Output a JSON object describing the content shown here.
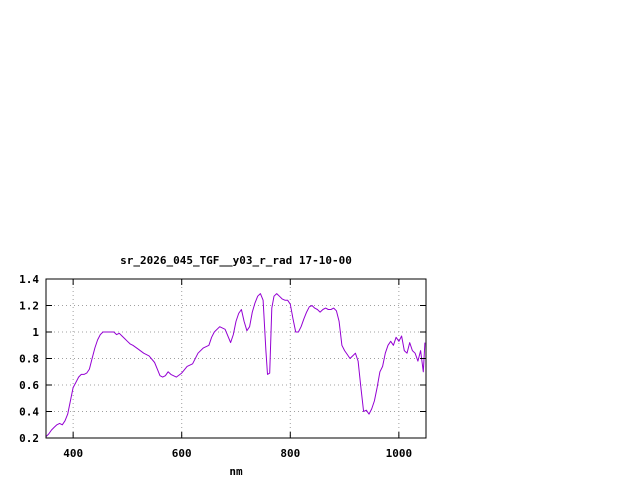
{
  "chart_data": {
    "type": "line",
    "title": "sr_2026_045_TGF__y03_r_rad 17-10-00",
    "xlabel": "nm",
    "ylabel": "",
    "xlim": [
      350,
      1050
    ],
    "ylim": [
      0.2,
      1.4
    ],
    "grid": true,
    "x_ticks": [
      400,
      600,
      800,
      1000
    ],
    "x_tick_labels": [
      "400",
      "600",
      "800",
      "1000"
    ],
    "y_ticks": [
      0.2,
      0.4,
      0.6,
      0.8,
      1.0,
      1.2,
      1.4
    ],
    "y_tick_labels": [
      "0.2",
      "0.4",
      "0.6",
      "0.8",
      "1",
      "1.2",
      "1.4"
    ],
    "line_color": "#9400d3",
    "series": [
      {
        "x": [
          350,
          355,
          360,
          365,
          370,
          375,
          380,
          385,
          390,
          395,
          400,
          405,
          410,
          415,
          420,
          425,
          430,
          435,
          440,
          445,
          450,
          455,
          460,
          465,
          470,
          475,
          480,
          485,
          490,
          495,
          500,
          505,
          510,
          520,
          530,
          540,
          550,
          555,
          560,
          565,
          570,
          575,
          580,
          590,
          600,
          610,
          620,
          630,
          640,
          650,
          655,
          660,
          670,
          680,
          690,
          695,
          700,
          705,
          710,
          715,
          720,
          725,
          730,
          735,
          740,
          745,
          750,
          755,
          758,
          762,
          766,
          770,
          775,
          780,
          785,
          790,
          795,
          800,
          805,
          810,
          815,
          820,
          825,
          830,
          835,
          840,
          845,
          850,
          855,
          860,
          865,
          870,
          875,
          880,
          885,
          890,
          895,
          900,
          905,
          910,
          915,
          920,
          925,
          930,
          935,
          940,
          945,
          950,
          955,
          960,
          965,
          970,
          975,
          980,
          985,
          990,
          995,
          1000,
          1005,
          1010,
          1015,
          1020,
          1025,
          1030,
          1035,
          1040,
          1045,
          1048
        ],
        "y": [
          0.21,
          0.23,
          0.26,
          0.28,
          0.3,
          0.31,
          0.3,
          0.33,
          0.38,
          0.48,
          0.58,
          0.62,
          0.66,
          0.68,
          0.68,
          0.69,
          0.72,
          0.8,
          0.88,
          0.94,
          0.98,
          1.0,
          1.0,
          1.0,
          1.0,
          1.0,
          0.98,
          0.99,
          0.97,
          0.95,
          0.93,
          0.91,
          0.9,
          0.87,
          0.84,
          0.82,
          0.77,
          0.72,
          0.67,
          0.66,
          0.67,
          0.7,
          0.68,
          0.66,
          0.69,
          0.74,
          0.76,
          0.84,
          0.88,
          0.9,
          0.96,
          1.0,
          1.04,
          1.02,
          0.92,
          0.98,
          1.08,
          1.14,
          1.17,
          1.08,
          1.01,
          1.04,
          1.15,
          1.22,
          1.27,
          1.29,
          1.24,
          0.86,
          0.68,
          0.69,
          1.18,
          1.27,
          1.29,
          1.27,
          1.25,
          1.24,
          1.24,
          1.21,
          1.1,
          1.0,
          1.0,
          1.04,
          1.1,
          1.15,
          1.19,
          1.2,
          1.18,
          1.17,
          1.15,
          1.17,
          1.18,
          1.17,
          1.17,
          1.18,
          1.16,
          1.08,
          0.9,
          0.86,
          0.83,
          0.8,
          0.82,
          0.84,
          0.78,
          0.58,
          0.4,
          0.41,
          0.38,
          0.42,
          0.48,
          0.58,
          0.7,
          0.74,
          0.84,
          0.9,
          0.93,
          0.9,
          0.96,
          0.93,
          0.97,
          0.86,
          0.84,
          0.92,
          0.86,
          0.84,
          0.78,
          0.86,
          0.7,
          0.92
        ]
      }
    ]
  }
}
